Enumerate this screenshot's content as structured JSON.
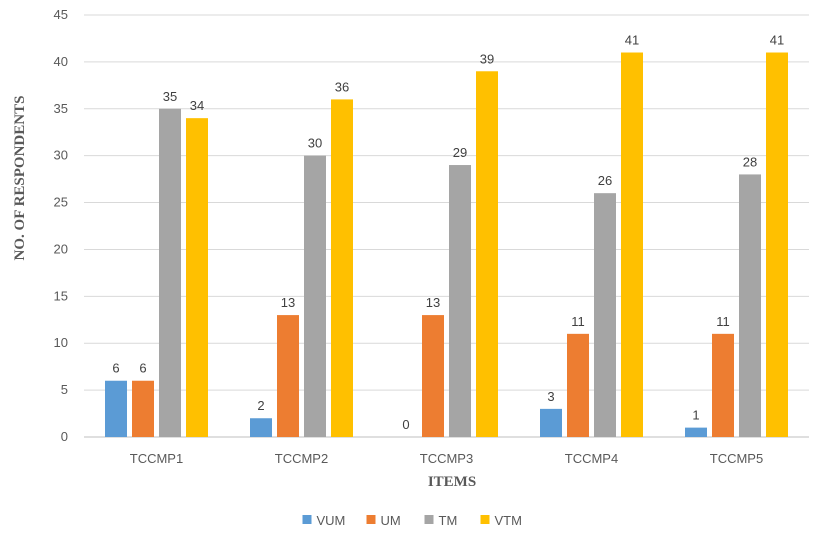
{
  "chart_data": {
    "type": "bar",
    "title": "",
    "xlabel": "ITEMS",
    "ylabel": "NO. OF RESPONDENTS",
    "categories": [
      "TCCMP1",
      "TCCMP2",
      "TCCMP3",
      "TCCMP4",
      "TCCMP5"
    ],
    "ylim": [
      0,
      45
    ],
    "yticks": [
      0,
      5,
      10,
      15,
      20,
      25,
      30,
      35,
      40,
      45
    ],
    "grid": true,
    "legend_position": "bottom",
    "series": [
      {
        "name": "VUM",
        "color": "#5b9bd5",
        "values": [
          6,
          2,
          0,
          3,
          1
        ]
      },
      {
        "name": "UM",
        "color": "#ed7d31",
        "values": [
          6,
          13,
          13,
          11,
          11
        ]
      },
      {
        "name": "TM",
        "color": "#a5a5a5",
        "values": [
          35,
          30,
          29,
          26,
          28
        ]
      },
      {
        "name": "VTM",
        "color": "#ffc000",
        "values": [
          34,
          36,
          39,
          41,
          41
        ]
      }
    ]
  }
}
